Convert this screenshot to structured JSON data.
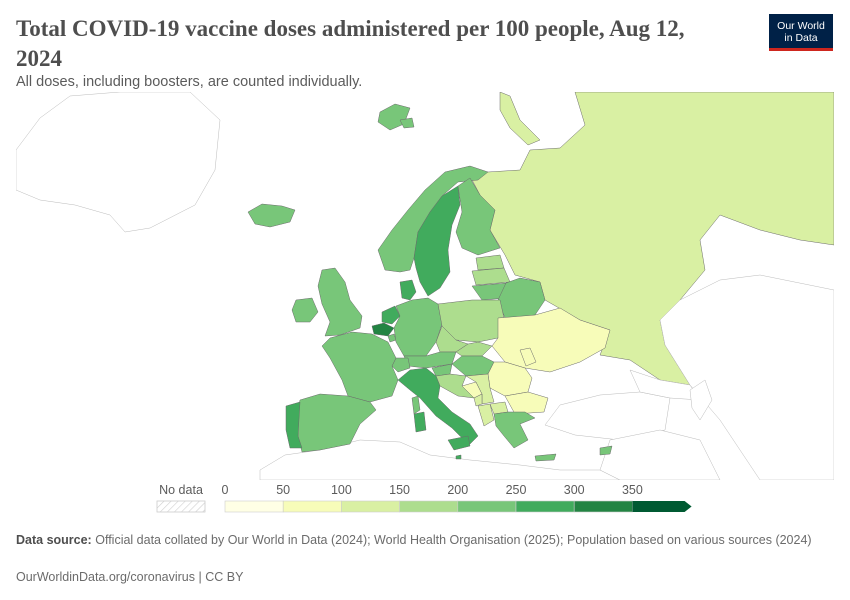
{
  "header": {
    "title": "Total COVID-19 vaccine doses administered per 100 people, Aug 12, 2024",
    "subtitle": "All doses, including boosters, are counted individually."
  },
  "logo": {
    "line1": "Our World",
    "line2": "in Data",
    "bg_color": "#002147",
    "accent_color": "#ce261e"
  },
  "map": {
    "region": "Europe",
    "countries": [
      {
        "name": "Russia",
        "bin": 2
      },
      {
        "name": "Ukraine",
        "bin": 1
      },
      {
        "name": "Moldova",
        "bin": 1
      },
      {
        "name": "Romania",
        "bin": 1
      },
      {
        "name": "Bulgaria",
        "bin": 1
      },
      {
        "name": "Bosnia and Herzegovina",
        "bin": 1
      },
      {
        "name": "North Macedonia",
        "bin": 2
      },
      {
        "name": "Albania",
        "bin": 2
      },
      {
        "name": "Serbia",
        "bin": 2
      },
      {
        "name": "Montenegro",
        "bin": 2
      },
      {
        "name": "Croatia",
        "bin": 3
      },
      {
        "name": "Slovakia",
        "bin": 3
      },
      {
        "name": "Czechia",
        "bin": 3
      },
      {
        "name": "Poland",
        "bin": 3
      },
      {
        "name": "Estonia",
        "bin": 3
      },
      {
        "name": "Latvia",
        "bin": 3
      },
      {
        "name": "Iceland",
        "bin": 4
      },
      {
        "name": "Ireland",
        "bin": 4
      },
      {
        "name": "United Kingdom",
        "bin": 4
      },
      {
        "name": "France",
        "bin": 4
      },
      {
        "name": "Spain",
        "bin": 4
      },
      {
        "name": "Germany",
        "bin": 4
      },
      {
        "name": "Norway",
        "bin": 4
      },
      {
        "name": "Finland",
        "bin": 4
      },
      {
        "name": "Lithuania",
        "bin": 4
      },
      {
        "name": "Belarus",
        "bin": 4
      },
      {
        "name": "Switzerland",
        "bin": 4
      },
      {
        "name": "Austria",
        "bin": 4
      },
      {
        "name": "Hungary",
        "bin": 4
      },
      {
        "name": "Slovenia",
        "bin": 4
      },
      {
        "name": "Greece",
        "bin": 4
      },
      {
        "name": "Cyprus",
        "bin": 4
      },
      {
        "name": "Luxembourg",
        "bin": 4
      },
      {
        "name": "Svalbard",
        "bin": 4
      },
      {
        "name": "Sweden",
        "bin": 5
      },
      {
        "name": "Denmark",
        "bin": 5
      },
      {
        "name": "Netherlands",
        "bin": 5
      },
      {
        "name": "Portugal",
        "bin": 5
      },
      {
        "name": "Italy",
        "bin": 5
      },
      {
        "name": "Belgium",
        "bin": 6
      },
      {
        "name": "Malta",
        "bin": 5
      }
    ]
  },
  "legend": {
    "no_data_label": "No data",
    "ticks": [
      "0",
      "50",
      "100",
      "150",
      "200",
      "250",
      "300",
      "350"
    ],
    "colors": [
      "#ffffe5",
      "#f7fcb9",
      "#d9f0a3",
      "#addd8e",
      "#78c679",
      "#41ab5d",
      "#238443",
      "#005a32"
    ],
    "no_data_color": "#eeeeee",
    "border_color": "#cccccc"
  },
  "footer": {
    "source_label": "Data source:",
    "source_text": "Official data collated by Our World in Data (2024); World Health Organisation (2025); Population based on various sources (2024)",
    "url": "OurWorldinData.org/coronavirus",
    "separator": " | ",
    "license": "CC BY"
  }
}
